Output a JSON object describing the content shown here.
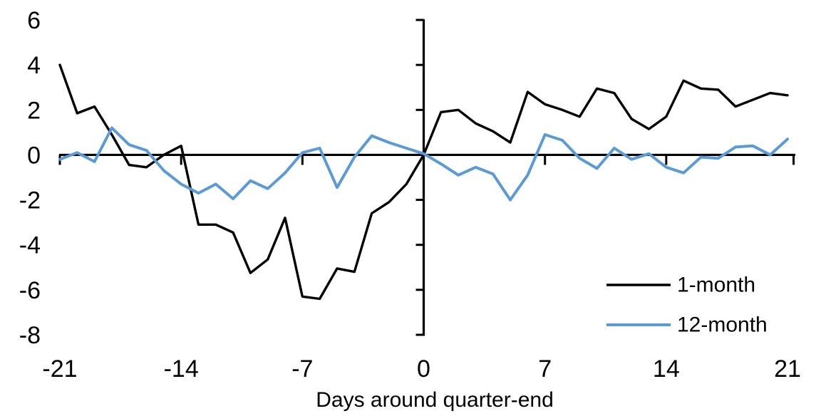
{
  "chart_data": {
    "type": "line",
    "x": [
      -21,
      -20,
      -19,
      -18,
      -17,
      -16,
      -15,
      -14,
      -13,
      -12,
      -11,
      -10,
      -9,
      -8,
      -7,
      -6,
      -5,
      -4,
      -3,
      -2,
      -1,
      0,
      1,
      2,
      3,
      4,
      5,
      6,
      7,
      8,
      9,
      10,
      11,
      12,
      13,
      14,
      15,
      16,
      17,
      18,
      19,
      20,
      21
    ],
    "series": [
      {
        "name": "1-month",
        "color": "#000000",
        "values": [
          4.0,
          1.85,
          2.15,
          0.9,
          -0.45,
          -0.55,
          0.0,
          0.4,
          -3.1,
          -3.1,
          -3.45,
          -5.25,
          -4.65,
          -2.8,
          -6.3,
          -6.4,
          -5.05,
          -5.2,
          -2.6,
          -2.1,
          -1.3,
          0.0,
          1.9,
          2.0,
          1.4,
          1.05,
          0.55,
          2.8,
          2.25,
          2.0,
          1.7,
          2.95,
          2.75,
          1.6,
          1.15,
          1.7,
          3.3,
          2.95,
          2.9,
          2.15,
          2.45,
          2.75,
          2.65
        ]
      },
      {
        "name": "12-month",
        "color": "#5B9BD5",
        "values": [
          -0.2,
          0.1,
          -0.3,
          1.2,
          0.45,
          0.2,
          -0.7,
          -1.3,
          -1.7,
          -1.3,
          -1.95,
          -1.15,
          -1.5,
          -0.8,
          0.1,
          0.3,
          -1.45,
          -0.1,
          0.85,
          0.55,
          0.3,
          0.05,
          -0.4,
          -0.9,
          -0.55,
          -0.85,
          -2.0,
          -0.9,
          0.9,
          0.65,
          -0.15,
          -0.6,
          0.3,
          -0.2,
          0.05,
          -0.55,
          -0.8,
          -0.1,
          -0.15,
          0.35,
          0.4,
          0.0,
          0.7
        ]
      }
    ],
    "title": "",
    "xlabel": "Days around quarter-end",
    "ylabel": "",
    "xlim": [
      -21,
      21
    ],
    "ylim": [
      -8,
      6
    ],
    "xticks": [
      -21,
      -14,
      -7,
      0,
      7,
      14,
      21
    ],
    "yticks": [
      6,
      4,
      2,
      0,
      -2,
      -4,
      -6,
      -8
    ],
    "grid": false,
    "axis_color": "#000000",
    "background_color": "#ffffff",
    "legend": {
      "position": "inside-bottom-right",
      "entries": [
        "1-month",
        "12-month"
      ]
    }
  }
}
